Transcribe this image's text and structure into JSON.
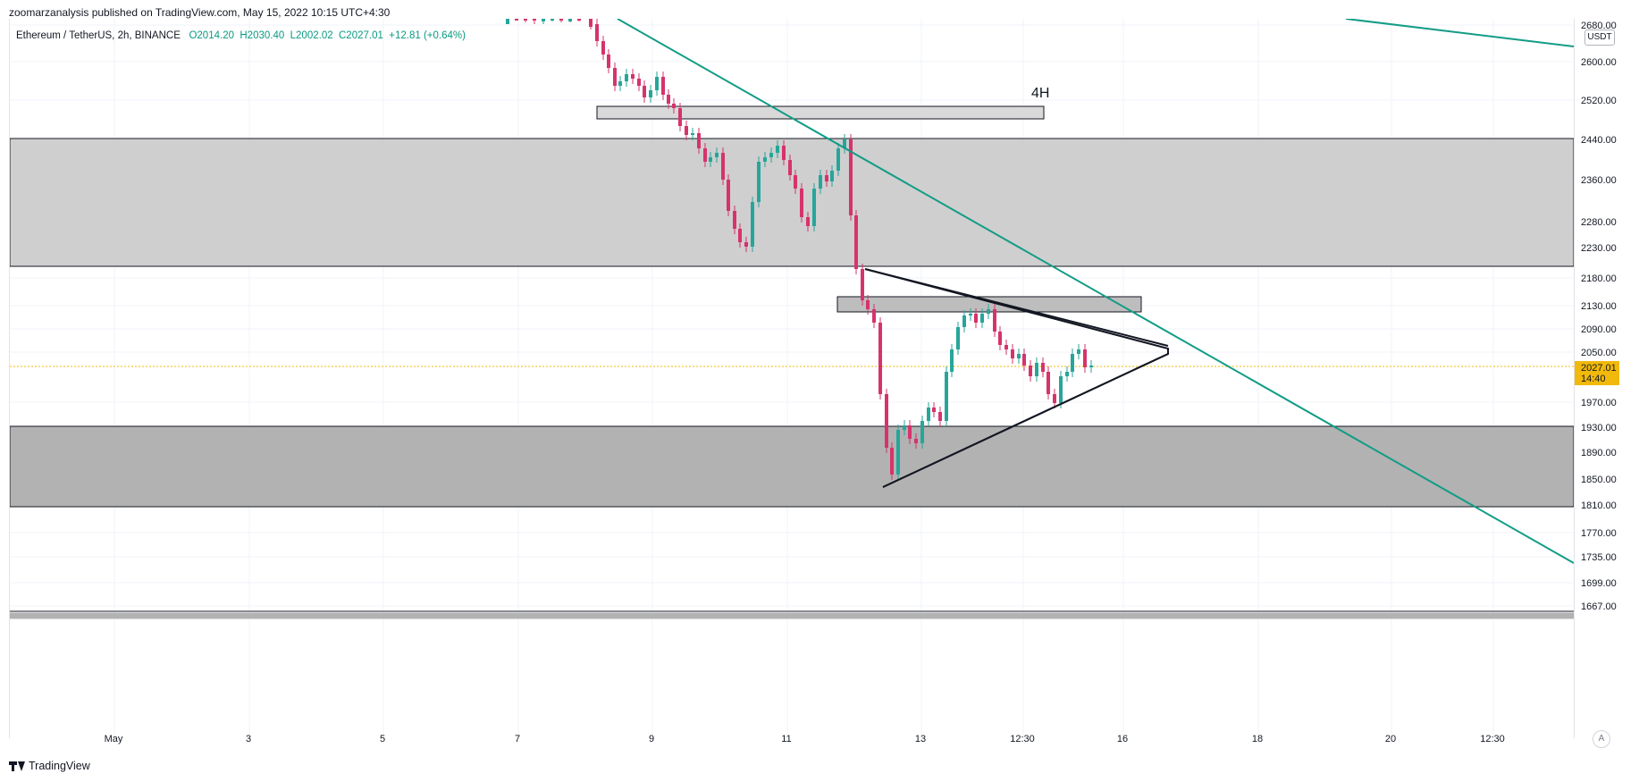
{
  "header": {
    "published": "zoomarzanalysis published on TradingView.com, May 15, 2022 10:15 UTC+4:30"
  },
  "ticker": {
    "symbol": "Ethereum / TetherUS, 2h, BINANCE",
    "open": "O2014.20",
    "high": "H2030.40",
    "low": "L2002.02",
    "close": "C2027.01",
    "change": "+12.81 (+0.64%)"
  },
  "annotation": {
    "timeframe_label": "4H"
  },
  "price_scale": {
    "unit": "USDT",
    "ticks": [
      "2680.00",
      "2600.00",
      "2520.00",
      "2440.00",
      "2360.00",
      "2280.00",
      "2230.00",
      "2180.00",
      "2130.00",
      "2090.00",
      "2050.00",
      "1970.00",
      "1930.00",
      "1890.00",
      "1850.00",
      "1810.00",
      "1770.00",
      "1735.00",
      "1699.00",
      "1667.00"
    ],
    "last_price": "2027.01",
    "countdown": "14:40",
    "auto_label": "A"
  },
  "time_axis": {
    "labels": [
      "May",
      "3",
      "5",
      "7",
      "9",
      "11",
      "13",
      "12:30",
      "16",
      "18",
      "20",
      "12:30"
    ]
  },
  "footer": {
    "brand": "TradingView"
  },
  "colors": {
    "up": "#26a69a",
    "down": "#d6336c",
    "trendline": "#129c86",
    "zone_light": "#cfcfcf",
    "zone_dark": "#b2b2b2",
    "last_price_bg": "#f0b90b"
  },
  "chart_data": {
    "type": "candlestick",
    "title": "Ethereum / TetherUS, 2h, BINANCE",
    "y_range": [
      1640,
      2700
    ],
    "zones": [
      {
        "name": "upper supply zone",
        "low": 2200,
        "high": 2447
      },
      {
        "name": "lower demand zone",
        "low": 1806,
        "high": 1926
      },
      {
        "name": "4H level",
        "low": 2495,
        "high": 2510
      },
      {
        "name": "minor level",
        "low": 2122,
        "high": 2140
      }
    ],
    "triangle": {
      "apex_high": 2185,
      "apex_low": 1842,
      "tip": 2060
    },
    "last_close": 2027.01,
    "grid": true
  }
}
